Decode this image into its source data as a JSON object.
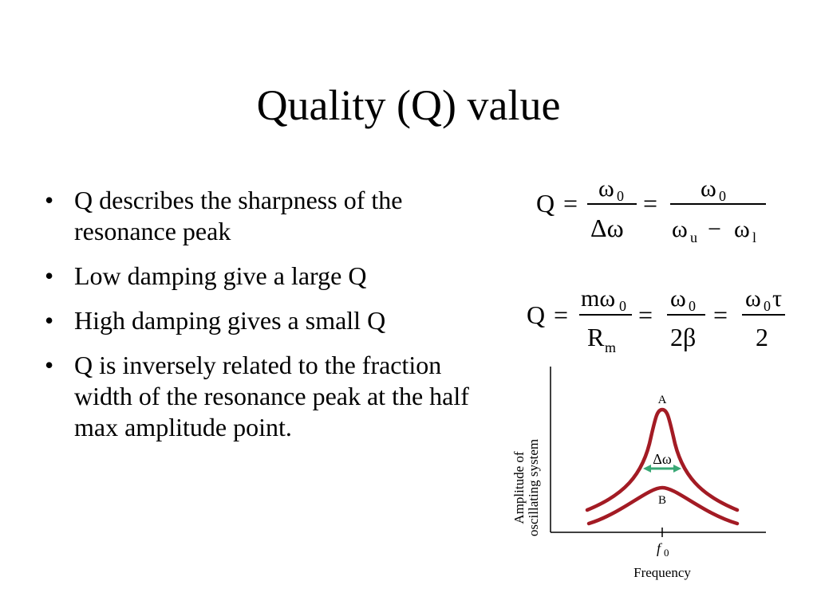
{
  "slide": {
    "title": "Quality (Q) value",
    "bullets": [
      "Q describes the sharpness of the resonance peak",
      "Low damping give a large Q",
      "High damping gives a small Q",
      "Q is inversely related to the fraction width of the resonance peak at the half max amplitude point."
    ]
  },
  "equation1": {
    "lhs": "Q",
    "equals": "=",
    "num1": "ω",
    "num1_sub": "0",
    "den1": "Δω",
    "num2": "ω",
    "num2_sub": "0",
    "den2_a": "ω",
    "den2_a_sub": "u",
    "den2_minus": "−",
    "den2_b": "ω",
    "den2_b_sub": "l"
  },
  "equation2": {
    "lhs": "Q",
    "equals": "=",
    "num1": "mω",
    "num1_sub": "0",
    "den1": "R",
    "den1_sub": "m",
    "num2": "ω",
    "num2_sub": "0",
    "den2": "2β",
    "num3": "ω",
    "num3_sub": "0",
    "num3_tail": "τ",
    "den3": "2"
  },
  "figure": {
    "ylabel_line1": "Amplitude of",
    "ylabel_line2": "oscillating system",
    "xlabel": "Frequency",
    "x_tick_label": "f",
    "x_tick_sub": "0",
    "curve_a_label": "A",
    "curve_b_label": "B",
    "width_label": "Δω",
    "curve_color": "#a31b24",
    "arrow_color": "#3aa876"
  }
}
